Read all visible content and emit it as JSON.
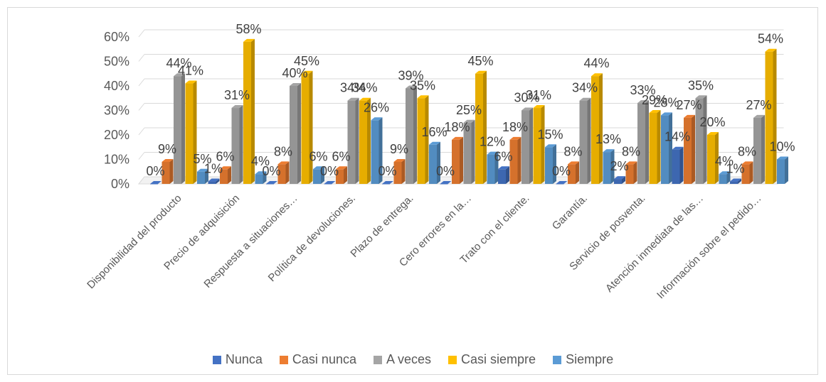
{
  "chart_data": {
    "type": "bar",
    "categories": [
      "Disponibilidad del producto",
      "Precio de adquisición",
      "Respuesta a situaciones…",
      "Política de devoluciones.",
      "Plazo de entrega.",
      "Cero errores en la…",
      "Trato con el cliente.",
      "Garantía.",
      "Servicio de posventa.",
      "Atención inmediata de las…",
      "Información sobre el pedido…"
    ],
    "series": [
      {
        "name": "Nunca",
        "color": "#4472C4",
        "values": [
          0,
          1,
          0,
          0,
          0,
          0,
          6,
          0,
          2,
          14,
          1
        ]
      },
      {
        "name": "Casi nunca",
        "color": "#ED7D31",
        "values": [
          9,
          6,
          8,
          6,
          9,
          18,
          18,
          8,
          8,
          27,
          8
        ]
      },
      {
        "name": "A veces",
        "color": "#A5A5A5",
        "values": [
          44,
          31,
          40,
          34,
          39,
          25,
          30,
          34,
          33,
          35,
          27
        ]
      },
      {
        "name": "Casi siempre",
        "color": "#FFC000",
        "values": [
          41,
          58,
          45,
          34,
          35,
          45,
          31,
          44,
          29,
          20,
          54
        ]
      },
      {
        "name": "Siempre",
        "color": "#5B9BD5",
        "values": [
          5,
          4,
          6,
          26,
          16,
          12,
          15,
          13,
          28,
          4,
          10
        ]
      }
    ],
    "ylim": [
      0,
      60
    ],
    "y_ticks": [
      "0%",
      "10%",
      "20%",
      "30%",
      "40%",
      "50%",
      "60%"
    ],
    "value_suffix": "%",
    "grid": true,
    "style": "3d-clustered-column",
    "legend_position": "bottom"
  }
}
